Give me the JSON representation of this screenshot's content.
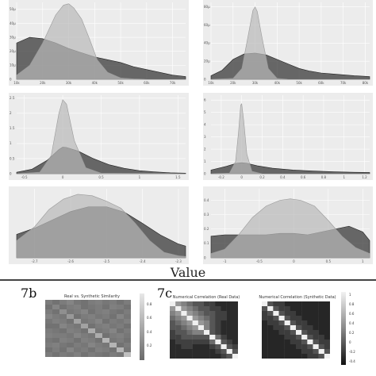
{
  "figure": {
    "shared_xlabel": "Value",
    "label_b": "7b",
    "label_c": "7c"
  },
  "colors": {
    "real": "#3a3a3a",
    "synthetic": "#b9b9b9",
    "panel_bg": "#ececec"
  },
  "chart_data": [
    {
      "type": "area",
      "x_ticks": [
        "10k",
        "20k",
        "30k",
        "40k",
        "50k",
        "60k",
        "70k"
      ],
      "y_ticks": [
        "0",
        "10µ",
        "20µ",
        "30µ",
        "40µ",
        "50µ"
      ],
      "xlim": [
        10000,
        75000
      ],
      "ylim": [
        0,
        5.5e-05
      ],
      "series": [
        {
          "x": [
            10000,
            15000,
            20000,
            25000,
            30000,
            35000,
            40000,
            45000,
            50000,
            55000,
            60000,
            65000,
            70000,
            75000
          ],
          "y": [
            2.6e-05,
            3e-05,
            2.9e-05,
            2.6e-05,
            2.2e-05,
            1.9e-05,
            1.6e-05,
            1.4e-05,
            1.2e-05,
            9e-06,
            7e-06,
            5e-06,
            3e-06,
            2e-06
          ]
        },
        {
          "x": [
            10000,
            15000,
            20000,
            25000,
            28000,
            30000,
            32000,
            35000,
            38000,
            41000,
            45000,
            50000,
            55000,
            60000,
            75000
          ],
          "y": [
            3e-06,
            1e-05,
            2.6e-05,
            4.6e-05,
            5.3e-05,
            5.4e-05,
            5.1e-05,
            4.3e-05,
            2.9e-05,
            1.4e-05,
            5e-06,
            1e-06,
            3e-07,
            0,
            0
          ]
        }
      ]
    },
    {
      "type": "area",
      "x_ticks": [
        "10k",
        "20k",
        "30k",
        "40k",
        "50k",
        "60k",
        "70k",
        "80k"
      ],
      "y_ticks": [
        "0",
        "20µ",
        "40µ",
        "60µ",
        "80µ"
      ],
      "xlim": [
        10000,
        82000
      ],
      "ylim": [
        0,
        8.5e-05
      ],
      "series": [
        {
          "x": [
            10000,
            15000,
            20000,
            25000,
            30000,
            35000,
            40000,
            45000,
            50000,
            55000,
            60000,
            65000,
            70000,
            75000,
            82000
          ],
          "y": [
            4e-06,
            1e-05,
            2.2e-05,
            2.8e-05,
            2.9e-05,
            2.7e-05,
            2.2e-05,
            1.7e-05,
            1.2e-05,
            9e-06,
            7e-06,
            6e-06,
            5e-06,
            4e-06,
            3e-06
          ]
        },
        {
          "x": [
            10000,
            20000,
            24000,
            27000,
            29000,
            30000,
            31000,
            33000,
            36000,
            40000,
            45000,
            82000
          ],
          "y": [
            0,
            1e-06,
            1.2e-05,
            5e-05,
            7.6e-05,
            8e-05,
            7.5e-05,
            4.8e-05,
            1.2e-05,
            1e-06,
            0,
            0
          ]
        }
      ]
    },
    {
      "type": "area",
      "x_ticks": [
        "-0.5",
        "0",
        "0.5",
        "1",
        "1.5"
      ],
      "y_ticks": [
        "0",
        "0.5",
        "1",
        "1.5",
        "2",
        "2.5"
      ],
      "xlim": [
        -0.6,
        1.6
      ],
      "ylim": [
        0,
        2.6
      ],
      "series": [
        {
          "x": [
            -0.6,
            -0.4,
            -0.2,
            -0.05,
            0.0,
            0.05,
            0.2,
            0.4,
            0.6,
            0.8,
            1.0,
            1.2,
            1.4,
            1.6
          ],
          "y": [
            0.05,
            0.15,
            0.45,
            0.8,
            0.88,
            0.87,
            0.75,
            0.5,
            0.3,
            0.18,
            0.1,
            0.06,
            0.03,
            0.02
          ]
        },
        {
          "x": [
            -0.6,
            -0.3,
            -0.15,
            -0.05,
            0.0,
            0.05,
            0.15,
            0.3,
            0.5,
            1.6
          ],
          "y": [
            0.0,
            0.05,
            0.6,
            2.0,
            2.45,
            2.3,
            1.1,
            0.2,
            0.02,
            0.0
          ]
        }
      ]
    },
    {
      "type": "area",
      "x_ticks": [
        "-0.2",
        "0",
        "0.2",
        "0.4",
        "0.6",
        "0.8",
        "1",
        "1.2"
      ],
      "y_ticks": [
        "0",
        "1",
        "2",
        "3",
        "4",
        "5",
        "6"
      ],
      "xlim": [
        -0.3,
        1.25
      ],
      "ylim": [
        0,
        6.4
      ],
      "series": [
        {
          "x": [
            -0.3,
            -0.15,
            -0.05,
            0.0,
            0.05,
            0.15,
            0.3,
            0.5,
            0.7,
            0.9,
            1.1,
            1.25
          ],
          "y": [
            0.3,
            0.6,
            0.85,
            0.9,
            0.85,
            0.65,
            0.45,
            0.3,
            0.22,
            0.16,
            0.12,
            0.1
          ]
        },
        {
          "x": [
            -0.3,
            -0.12,
            -0.06,
            -0.03,
            -0.01,
            0.0,
            0.02,
            0.05,
            0.1,
            0.2,
            1.25
          ],
          "y": [
            0.0,
            0.05,
            1.0,
            3.5,
            5.6,
            5.7,
            4.3,
            1.6,
            0.2,
            0.0,
            0.0
          ]
        }
      ]
    },
    {
      "type": "area",
      "x_ticks": [
        "-2.7",
        "-2.6",
        "-2.5",
        "-2.4",
        "-2.3"
      ],
      "y_ticks": [],
      "xlim": [
        -2.75,
        -2.28
      ],
      "ylim": [
        0,
        1.0
      ],
      "series": [
        {
          "x": [
            -2.75,
            -2.7,
            -2.65,
            -2.6,
            -2.55,
            -2.5,
            -2.45,
            -2.4,
            -2.35,
            -2.3,
            -2.28
          ],
          "y": [
            0.34,
            0.43,
            0.55,
            0.67,
            0.74,
            0.74,
            0.66,
            0.5,
            0.33,
            0.2,
            0.17
          ]
        },
        {
          "x": [
            -2.75,
            -2.7,
            -2.66,
            -2.62,
            -2.58,
            -2.54,
            -2.5,
            -2.46,
            -2.42,
            -2.38,
            -2.34,
            -2.3,
            -2.28
          ],
          "y": [
            0.25,
            0.45,
            0.7,
            0.85,
            0.92,
            0.9,
            0.82,
            0.72,
            0.5,
            0.25,
            0.08,
            0.03,
            0.02
          ]
        }
      ]
    },
    {
      "type": "area",
      "x_ticks": [
        "-1",
        "-0.5",
        "0",
        "0.5",
        "1"
      ],
      "y_ticks": [
        "0",
        "0.1",
        "0.2",
        "0.3",
        "0.4"
      ],
      "xlim": [
        -1.2,
        1.1
      ],
      "ylim": [
        0,
        0.48
      ],
      "series": [
        {
          "x": [
            -1.2,
            -1.0,
            -0.8,
            -0.6,
            -0.4,
            -0.2,
            0.0,
            0.2,
            0.4,
            0.6,
            0.8,
            1.0,
            1.1
          ],
          "y": [
            0.15,
            0.16,
            0.16,
            0.16,
            0.16,
            0.17,
            0.17,
            0.16,
            0.18,
            0.2,
            0.22,
            0.18,
            0.12
          ]
        },
        {
          "x": [
            -1.2,
            -1.0,
            -0.8,
            -0.6,
            -0.4,
            -0.2,
            -0.05,
            0.1,
            0.3,
            0.5,
            0.7,
            0.9,
            1.1
          ],
          "y": [
            0.03,
            0.06,
            0.16,
            0.28,
            0.36,
            0.4,
            0.41,
            0.4,
            0.36,
            0.26,
            0.15,
            0.07,
            0.03
          ]
        }
      ]
    },
    {
      "type": "heatmap",
      "title": "Real vs. Synthetic Similarity",
      "n": 12,
      "colorbar_ticks": [
        "0.8",
        "0.6",
        "0.4",
        "0.2"
      ],
      "values": [
        [
          0.62,
          0.6,
          0.62,
          0.64,
          0.61,
          0.6,
          0.62,
          0.63,
          0.61,
          0.62,
          0.6,
          0.62
        ],
        [
          0.6,
          0.64,
          0.6,
          0.62,
          0.63,
          0.6,
          0.61,
          0.62,
          0.6,
          0.63,
          0.62,
          0.6
        ],
        [
          0.62,
          0.6,
          0.66,
          0.61,
          0.62,
          0.64,
          0.6,
          0.62,
          0.63,
          0.61,
          0.6,
          0.62
        ],
        [
          0.64,
          0.62,
          0.61,
          0.68,
          0.6,
          0.62,
          0.63,
          0.61,
          0.62,
          0.6,
          0.64,
          0.61
        ],
        [
          0.61,
          0.63,
          0.62,
          0.6,
          0.7,
          0.61,
          0.62,
          0.64,
          0.6,
          0.62,
          0.61,
          0.63
        ],
        [
          0.6,
          0.6,
          0.64,
          0.62,
          0.61,
          0.7,
          0.6,
          0.62,
          0.63,
          0.61,
          0.62,
          0.6
        ],
        [
          0.62,
          0.61,
          0.6,
          0.63,
          0.62,
          0.6,
          0.72,
          0.61,
          0.62,
          0.64,
          0.6,
          0.62
        ],
        [
          0.63,
          0.62,
          0.62,
          0.61,
          0.64,
          0.62,
          0.61,
          0.72,
          0.6,
          0.62,
          0.63,
          0.61
        ],
        [
          0.61,
          0.6,
          0.63,
          0.62,
          0.6,
          0.63,
          0.62,
          0.6,
          0.74,
          0.61,
          0.62,
          0.6
        ],
        [
          0.62,
          0.63,
          0.61,
          0.6,
          0.62,
          0.61,
          0.64,
          0.62,
          0.61,
          0.74,
          0.6,
          0.62
        ],
        [
          0.6,
          0.62,
          0.6,
          0.64,
          0.61,
          0.62,
          0.6,
          0.63,
          0.62,
          0.6,
          0.74,
          0.61
        ],
        [
          0.62,
          0.6,
          0.62,
          0.61,
          0.63,
          0.6,
          0.62,
          0.61,
          0.6,
          0.62,
          0.61,
          0.76
        ]
      ]
    },
    {
      "type": "heatmap",
      "title": "Numerical Correlation (Real Data)",
      "n": 12,
      "values": [
        [
          1,
          0.6,
          0.5,
          0.4,
          0.3,
          0.3,
          0.2,
          0.2,
          0.1,
          0.1,
          0.1,
          0.1
        ],
        [
          0.6,
          1,
          0.6,
          0.5,
          0.4,
          0.3,
          0.3,
          0.2,
          0.2,
          0.1,
          0.1,
          0.1
        ],
        [
          0.5,
          0.6,
          1,
          0.6,
          0.5,
          0.4,
          0.3,
          0.3,
          0.2,
          0.2,
          0.1,
          0.1
        ],
        [
          0.4,
          0.5,
          0.6,
          1,
          0.6,
          0.5,
          0.4,
          0.3,
          0.2,
          0.2,
          0.1,
          0.1
        ],
        [
          0.3,
          0.4,
          0.5,
          0.6,
          1,
          0.6,
          0.5,
          0.3,
          0.2,
          0.1,
          0.1,
          0.1
        ],
        [
          0.3,
          0.3,
          0.4,
          0.5,
          0.6,
          1,
          0.5,
          0.3,
          0.2,
          0.1,
          0.1,
          0.1
        ],
        [
          0.2,
          0.3,
          0.3,
          0.4,
          0.5,
          0.5,
          1,
          0.3,
          0.2,
          0.1,
          0.1,
          0.1
        ],
        [
          0.2,
          0.2,
          0.3,
          0.3,
          0.3,
          0.3,
          0.3,
          1,
          0.4,
          0.2,
          0.1,
          0.1
        ],
        [
          0.1,
          0.2,
          0.2,
          0.2,
          0.2,
          0.2,
          0.2,
          0.4,
          1,
          0.3,
          0.2,
          0.1
        ],
        [
          0.1,
          0.1,
          0.2,
          0.2,
          0.1,
          0.1,
          0.1,
          0.2,
          0.3,
          1,
          0.3,
          0.2
        ],
        [
          0.1,
          0.1,
          0.1,
          0.1,
          0.1,
          0.1,
          0.1,
          0.1,
          0.2,
          0.3,
          1,
          0.3
        ],
        [
          0.1,
          0.1,
          0.1,
          0.1,
          0.1,
          0.1,
          0.1,
          0.1,
          0.1,
          0.2,
          0.3,
          1
        ]
      ]
    },
    {
      "type": "heatmap",
      "title": "Numerical Correlation (Synthetic Data)",
      "n": 12,
      "colorbar_ticks": [
        "1",
        "0.8",
        "0.6",
        "0.4",
        "0.2",
        "0",
        "-0.2",
        "-0.4"
      ],
      "values": [
        [
          1,
          0.3,
          0.2,
          0.2,
          0.1,
          0.1,
          0.1,
          0.1,
          0.1,
          0.1,
          0.1,
          0.1
        ],
        [
          0.3,
          1,
          0.3,
          0.2,
          0.2,
          0.1,
          0.1,
          0.1,
          0.1,
          0.1,
          0.1,
          0.1
        ],
        [
          0.2,
          0.3,
          1,
          0.3,
          0.2,
          0.2,
          0.1,
          0.1,
          0.1,
          0.1,
          0.1,
          0.1
        ],
        [
          0.2,
          0.2,
          0.3,
          1,
          0.3,
          0.2,
          0.2,
          0.1,
          0.1,
          0.1,
          0.1,
          0.1
        ],
        [
          0.1,
          0.2,
          0.2,
          0.3,
          1,
          0.3,
          0.2,
          0.2,
          0.1,
          0.1,
          0.1,
          0.1
        ],
        [
          0.1,
          0.1,
          0.2,
          0.2,
          0.3,
          1,
          0.3,
          0.2,
          0.2,
          0.1,
          0.1,
          0.1
        ],
        [
          0.1,
          0.1,
          0.1,
          0.2,
          0.2,
          0.3,
          1,
          0.3,
          0.2,
          0.2,
          0.1,
          0.1
        ],
        [
          0.1,
          0.1,
          0.1,
          0.1,
          0.2,
          0.2,
          0.3,
          1,
          0.3,
          0.2,
          0.2,
          0.1
        ],
        [
          0.1,
          0.1,
          0.1,
          0.1,
          0.1,
          0.2,
          0.2,
          0.3,
          1,
          0.3,
          0.2,
          0.2
        ],
        [
          0.1,
          0.1,
          0.1,
          0.1,
          0.1,
          0.1,
          0.2,
          0.2,
          0.3,
          1,
          0.3,
          0.2
        ],
        [
          0.1,
          0.1,
          0.1,
          0.1,
          0.1,
          0.1,
          0.1,
          0.2,
          0.2,
          0.3,
          1,
          0.3
        ],
        [
          0.1,
          0.1,
          0.1,
          0.1,
          0.1,
          0.1,
          0.1,
          0.1,
          0.2,
          0.2,
          0.3,
          1
        ]
      ]
    }
  ]
}
